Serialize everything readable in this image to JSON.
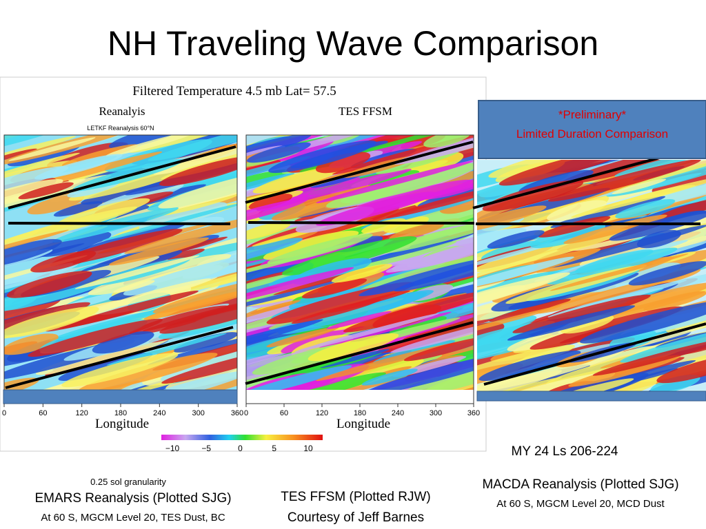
{
  "title": "NH Traveling Wave Comparison",
  "figure": {
    "title": "Filtered Temperature  4.5 mb  Lat= 57.5",
    "left_panel_title": "Reanalyis",
    "left_panel_subtitle": "LETKF Reanalysis 60°N",
    "middle_panel_title": "TES  FFSM",
    "x_axis_label": "Longitude",
    "x_ticks": [
      "0",
      "60",
      "120",
      "180",
      "240",
      "300",
      "360"
    ],
    "colorbar_ticks": [
      "−10",
      "−5",
      "0",
      "5",
      "10"
    ]
  },
  "note": {
    "line1": "*Preliminary*",
    "line2": "Limited Duration Comparison"
  },
  "period": "MY 24 Ls 206-224",
  "captions": {
    "left": {
      "small": "0.25 sol granularity",
      "main": "EMARS Reanalysis (Plotted SJG)",
      "detail": "At 60 S, MGCM Level 20, TES Dust, BC"
    },
    "middle": {
      "main": "TES FFSM (Plotted RJW)",
      "detail": "Courtesy of Jeff Barnes"
    },
    "right": {
      "main": "MACDA Reanalysis (Plotted SJG)",
      "detail": "At 60 S, MGCM Level 20, MCD Dust"
    }
  }
}
